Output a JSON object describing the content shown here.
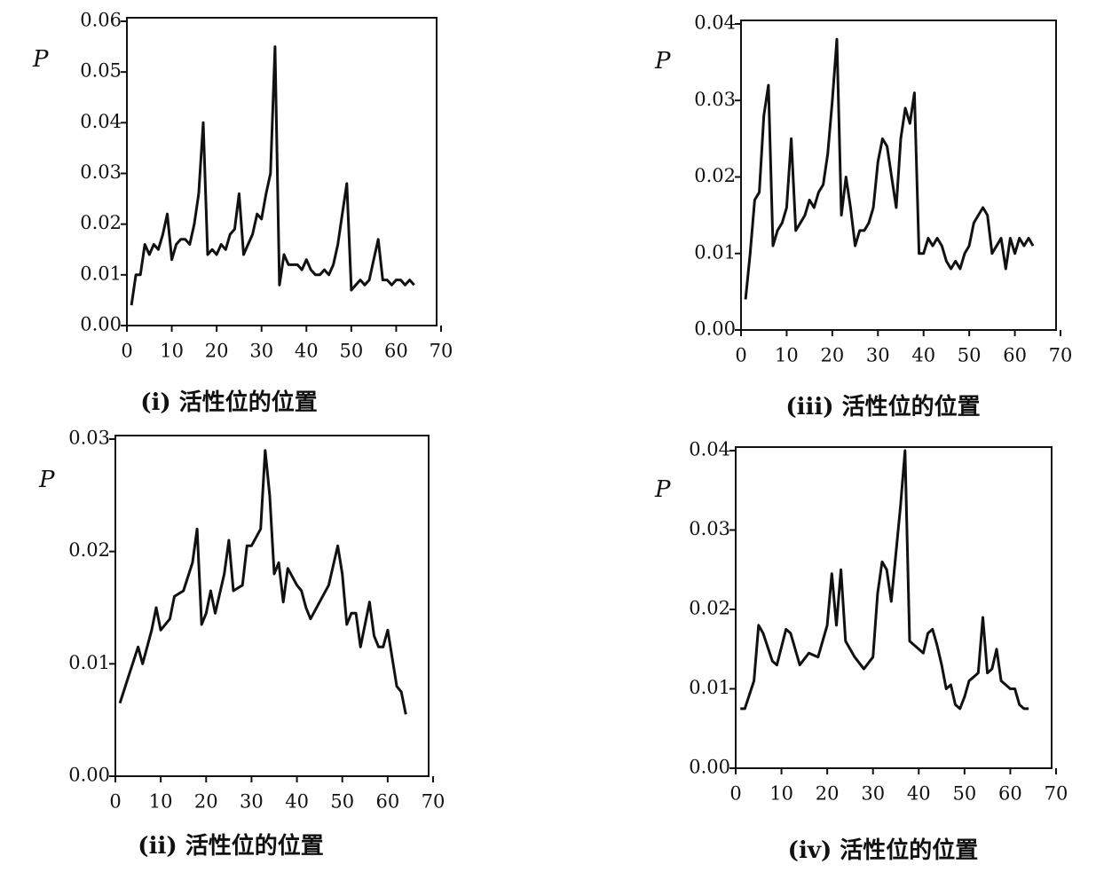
{
  "chart_data": [
    {
      "type": "line",
      "ylabel": "P",
      "xlabel": "(i) 活性位的位置",
      "x": [
        1,
        2,
        3,
        4,
        5,
        6,
        7,
        8,
        9,
        10,
        11,
        12,
        13,
        14,
        15,
        16,
        17,
        18,
        19,
        20,
        21,
        22,
        23,
        24,
        25,
        26,
        27,
        28,
        29,
        30,
        31,
        32,
        33,
        34,
        35,
        36,
        37,
        38,
        39,
        40,
        41,
        42,
        43,
        44,
        45,
        46,
        47,
        48,
        49,
        50,
        51,
        52,
        53,
        54,
        55,
        56,
        57,
        58,
        59,
        60,
        61,
        62,
        63,
        64
      ],
      "y": [
        0.004,
        0.01,
        0.01,
        0.016,
        0.014,
        0.016,
        0.015,
        0.018,
        0.022,
        0.013,
        0.016,
        0.017,
        0.017,
        0.016,
        0.02,
        0.026,
        0.04,
        0.014,
        0.015,
        0.014,
        0.016,
        0.015,
        0.018,
        0.019,
        0.026,
        0.014,
        0.016,
        0.018,
        0.022,
        0.021,
        0.026,
        0.03,
        0.055,
        0.008,
        0.014,
        0.012,
        0.012,
        0.012,
        0.011,
        0.013,
        0.011,
        0.01,
        0.01,
        0.011,
        0.01,
        0.012,
        0.016,
        0.022,
        0.028,
        0.007,
        0.008,
        0.009,
        0.008,
        0.009,
        0.013,
        0.017,
        0.009,
        0.009,
        0.008,
        0.009,
        0.009,
        0.008,
        0.009,
        0.008
      ],
      "color": "#111111",
      "xlim": [
        0,
        70
      ],
      "ylim": [
        0,
        0.06
      ],
      "xticks": [
        0,
        10,
        20,
        30,
        40,
        50,
        60,
        70
      ],
      "yticks": [
        {
          "value": 0,
          "label": "0.00"
        },
        0.01,
        0.02,
        0.03,
        0.04,
        0.05,
        0.06
      ]
    },
    {
      "type": "line",
      "ylabel": "P",
      "xlabel": "(iii) 活性位的位置",
      "x": [
        1,
        2,
        3,
        4,
        5,
        6,
        7,
        8,
        9,
        10,
        11,
        12,
        13,
        14,
        15,
        16,
        17,
        18,
        19,
        20,
        21,
        22,
        23,
        24,
        25,
        26,
        27,
        28,
        29,
        30,
        31,
        32,
        33,
        34,
        35,
        36,
        37,
        38,
        39,
        40,
        41,
        42,
        43,
        44,
        45,
        46,
        47,
        48,
        49,
        50,
        51,
        52,
        53,
        54,
        55,
        56,
        57,
        58,
        59,
        60,
        61,
        62,
        63,
        64
      ],
      "y": [
        0.004,
        0.01,
        0.017,
        0.018,
        0.028,
        0.032,
        0.011,
        0.013,
        0.014,
        0.016,
        0.025,
        0.013,
        0.014,
        0.015,
        0.017,
        0.016,
        0.018,
        0.019,
        0.023,
        0.03,
        0.038,
        0.015,
        0.02,
        0.016,
        0.011,
        0.013,
        0.013,
        0.014,
        0.016,
        0.022,
        0.025,
        0.024,
        0.02,
        0.016,
        0.025,
        0.029,
        0.027,
        0.031,
        0.01,
        0.01,
        0.012,
        0.011,
        0.012,
        0.011,
        0.009,
        0.008,
        0.009,
        0.008,
        0.01,
        0.011,
        0.014,
        0.015,
        0.016,
        0.015,
        0.01,
        0.011,
        0.012,
        0.008,
        0.012,
        0.01,
        0.012,
        0.011,
        0.012,
        0.011
      ],
      "color": "#111111",
      "xlim": [
        0,
        70
      ],
      "ylim": [
        0,
        0.04
      ],
      "xticks": [
        0,
        10,
        20,
        30,
        40,
        50,
        60,
        70
      ],
      "yticks": [
        {
          "value": 0,
          "label": "0.00"
        },
        0.01,
        0.02,
        0.03,
        0.04
      ]
    },
    {
      "type": "line",
      "ylabel": "P",
      "xlabel": "(ii) 活性位的位置",
      "x": [
        1,
        3,
        5,
        6,
        8,
        9,
        10,
        12,
        13,
        15,
        17,
        18,
        19,
        20,
        21,
        22,
        24,
        25,
        26,
        28,
        29,
        30,
        32,
        33,
        34,
        35,
        36,
        37,
        38,
        40,
        41,
        42,
        43,
        45,
        47,
        49,
        50,
        51,
        52,
        53,
        54,
        56,
        57,
        58,
        59,
        60,
        61,
        62,
        63,
        64
      ],
      "y": [
        0.0065,
        0.009,
        0.0115,
        0.01,
        0.013,
        0.015,
        0.013,
        0.014,
        0.016,
        0.0165,
        0.019,
        0.022,
        0.0135,
        0.0145,
        0.0165,
        0.0145,
        0.018,
        0.021,
        0.0165,
        0.017,
        0.0205,
        0.0205,
        0.022,
        0.029,
        0.025,
        0.018,
        0.019,
        0.0155,
        0.0185,
        0.017,
        0.0165,
        0.015,
        0.014,
        0.0155,
        0.017,
        0.0205,
        0.018,
        0.0135,
        0.0145,
        0.0145,
        0.0115,
        0.0155,
        0.0125,
        0.0115,
        0.0115,
        0.013,
        0.0105,
        0.008,
        0.0075,
        0.0055
      ],
      "color": "#111111",
      "xlim": [
        0,
        70
      ],
      "ylim": [
        0,
        0.03
      ],
      "xticks": [
        0,
        10,
        20,
        30,
        40,
        50,
        60,
        70
      ],
      "yticks": [
        {
          "value": 0,
          "label": "0.00"
        },
        0.01,
        0.02,
        0.03
      ]
    },
    {
      "type": "line",
      "ylabel": "P",
      "xlabel": "(iv) 活性位的位置",
      "x": [
        1,
        2,
        4,
        5,
        6,
        8,
        9,
        11,
        12,
        14,
        16,
        18,
        20,
        21,
        22,
        23,
        24,
        26,
        28,
        30,
        31,
        32,
        33,
        34,
        36,
        37,
        38,
        40,
        41,
        42,
        43,
        44,
        45,
        46,
        47,
        48,
        49,
        50,
        51,
        52,
        53,
        54,
        55,
        56,
        57,
        58,
        59,
        60,
        61,
        62,
        63,
        64
      ],
      "y": [
        0.0075,
        0.0075,
        0.011,
        0.018,
        0.017,
        0.0135,
        0.013,
        0.0175,
        0.017,
        0.013,
        0.0145,
        0.014,
        0.018,
        0.0245,
        0.018,
        0.025,
        0.016,
        0.014,
        0.0125,
        0.014,
        0.022,
        0.026,
        0.025,
        0.021,
        0.033,
        0.04,
        0.016,
        0.015,
        0.0145,
        0.017,
        0.0175,
        0.0155,
        0.013,
        0.01,
        0.0105,
        0.008,
        0.0075,
        0.009,
        0.011,
        0.0115,
        0.012,
        0.019,
        0.012,
        0.0125,
        0.015,
        0.011,
        0.0105,
        0.01,
        0.01,
        0.008,
        0.0075,
        0.0075
      ],
      "color": "#111111",
      "xlim": [
        0,
        70
      ],
      "ylim": [
        0,
        0.04
      ],
      "xticks": [
        0,
        10,
        20,
        30,
        40,
        50,
        60,
        70
      ],
      "yticks": [
        {
          "value": 0,
          "label": "0.00"
        },
        0.01,
        0.02,
        0.03,
        0.04
      ]
    }
  ]
}
